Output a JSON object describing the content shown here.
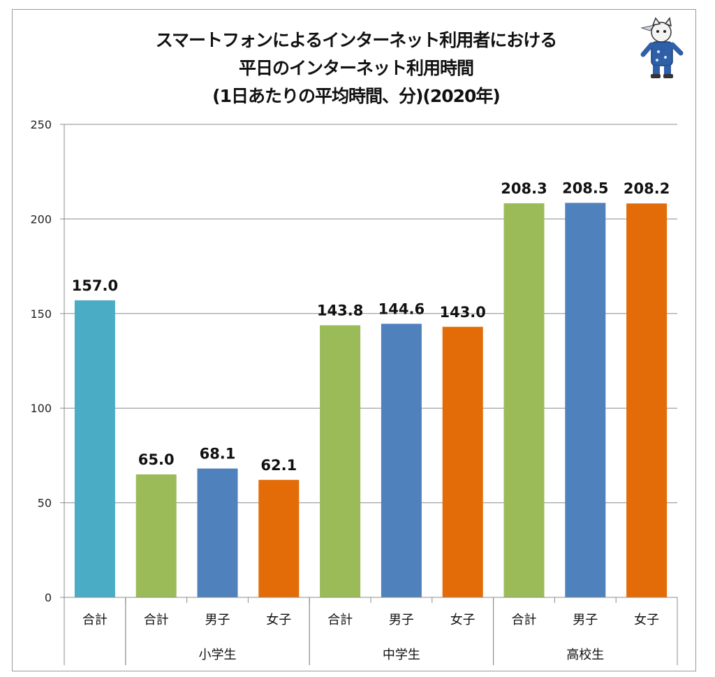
{
  "chart_data": {
    "type": "bar",
    "title_lines": [
      "スマートフォンによるインターネット利用者における",
      "平日のインターネット利用時間",
      "(1日あたりの平均時間、分)(2020年)"
    ],
    "ylim": [
      0,
      250
    ],
    "yticks": [
      0,
      50,
      100,
      150,
      200,
      250
    ],
    "grid": true,
    "groups": [
      {
        "label": "",
        "span": [
          0,
          0
        ]
      },
      {
        "label": "小学生",
        "span": [
          1,
          3
        ]
      },
      {
        "label": "中学生",
        "span": [
          4,
          6
        ]
      },
      {
        "label": "高校生",
        "span": [
          7,
          9
        ]
      }
    ],
    "bars": [
      {
        "category": "合計",
        "value": 157.0,
        "label": "157.0",
        "color": "#4bacc6"
      },
      {
        "category": "合計",
        "value": 65.0,
        "label": "65.0",
        "color": "#9bbb59"
      },
      {
        "category": "男子",
        "value": 68.1,
        "label": "68.1",
        "color": "#4f81bd"
      },
      {
        "category": "女子",
        "value": 62.1,
        "label": "62.1",
        "color": "#e36c09"
      },
      {
        "category": "合計",
        "value": 143.8,
        "label": "143.8",
        "color": "#9bbb59"
      },
      {
        "category": "男子",
        "value": 144.6,
        "label": "144.6",
        "color": "#4f81bd"
      },
      {
        "category": "女子",
        "value": 143.0,
        "label": "143.0",
        "color": "#e36c09"
      },
      {
        "category": "合計",
        "value": 208.3,
        "label": "208.3",
        "color": "#9bbb59"
      },
      {
        "category": "男子",
        "value": 208.5,
        "label": "208.5",
        "color": "#4f81bd"
      },
      {
        "category": "女子",
        "value": 208.2,
        "label": "208.2",
        "color": "#e36c09"
      }
    ]
  },
  "icons": {
    "mascot": "cat-mascot-icon"
  }
}
